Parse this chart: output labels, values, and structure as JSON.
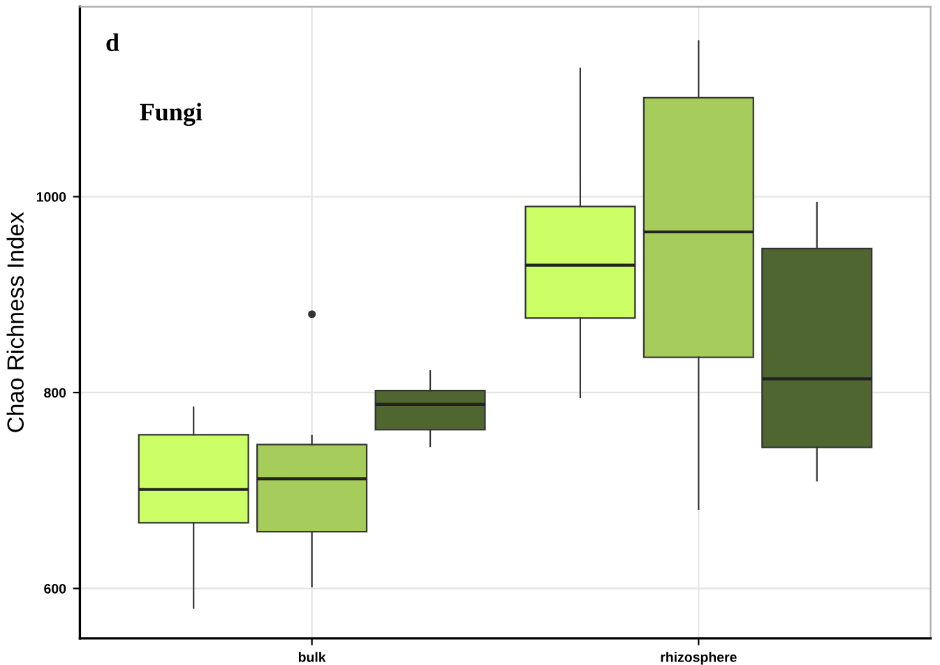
{
  "chart_data": {
    "type": "box",
    "ylabel": "Chao Richness Index",
    "annotations": [
      "d",
      "Fungi"
    ],
    "categories": [
      "bulk",
      "rhizosphere"
    ],
    "series": [
      {
        "color": "#ccff66",
        "boxes": [
          {
            "low": 580,
            "q1": 667,
            "median": 701,
            "q3": 757,
            "high": 785
          },
          {
            "low": 795,
            "q1": 876,
            "median": 930,
            "q3": 990,
            "high": 1131
          }
        ]
      },
      {
        "color": "#a6cc5c",
        "boxes": [
          {
            "low": 602,
            "q1": 658,
            "median": 712,
            "q3": 747,
            "high": 756,
            "outliers": [
              880
            ]
          },
          {
            "low": 681,
            "q1": 836,
            "median": 964,
            "q3": 1101,
            "high": 1159
          }
        ]
      },
      {
        "color": "#4f6630",
        "boxes": [
          {
            "low": 745,
            "q1": 762,
            "median": 788,
            "q3": 802,
            "high": 822
          },
          {
            "low": 710,
            "q1": 744,
            "median": 814,
            "q3": 947,
            "high": 994
          }
        ]
      }
    ],
    "ylim": [
      549,
      1194
    ],
    "yticks": [
      600,
      800,
      1000
    ],
    "grid": true,
    "legend": false
  }
}
